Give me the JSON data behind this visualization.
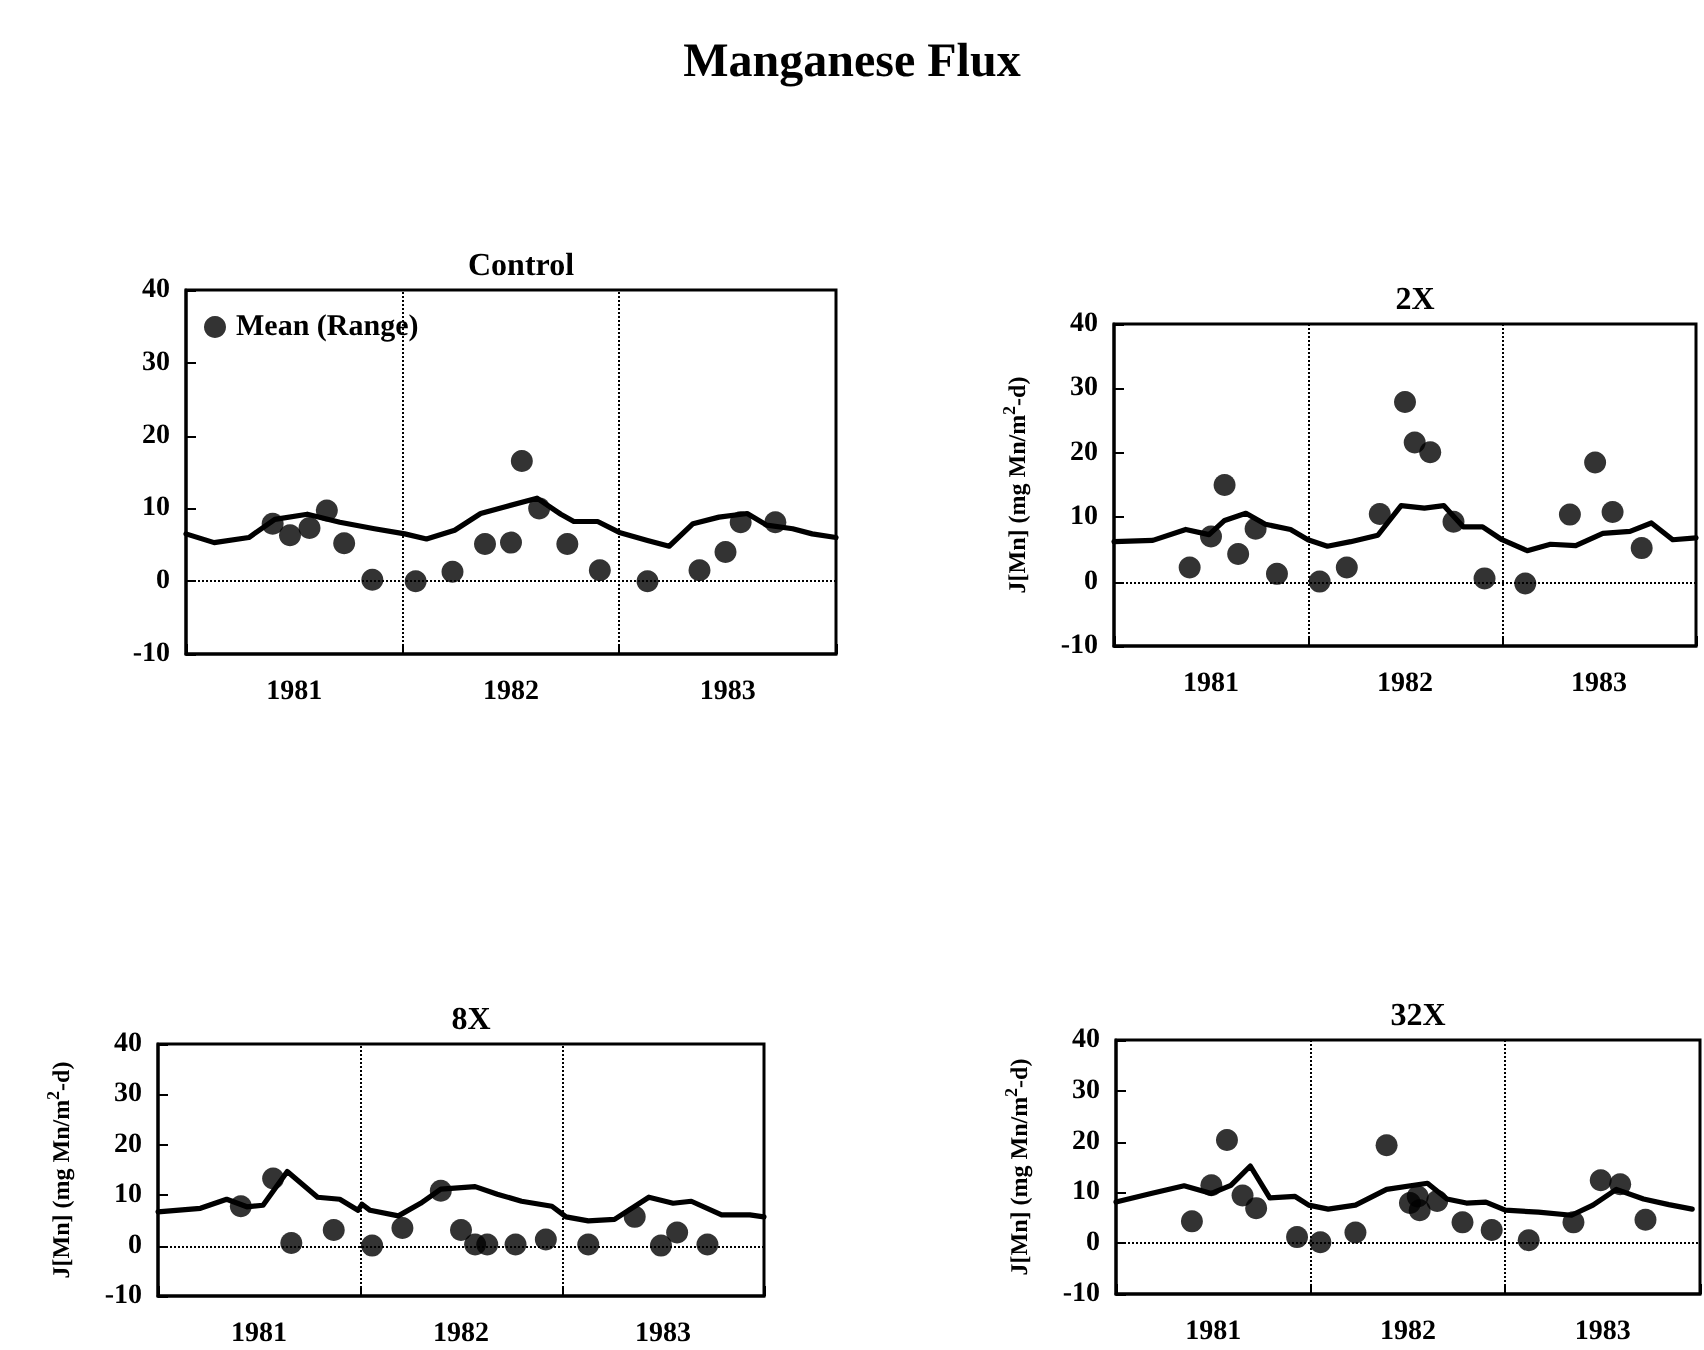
{
  "chart_data": [
    {
      "type": "scatter",
      "title": "Control",
      "annotations": [
        "Manganese Flux"
      ],
      "xlim": [
        1981,
        1984
      ],
      "xticks": [
        {
          "value": 1981,
          "label": null
        },
        {
          "value": 1981.5,
          "label": "1981"
        },
        {
          "value": 1982,
          "label": null
        },
        {
          "value": 1982.5,
          "label": "1982"
        },
        {
          "value": 1983,
          "label": null
        },
        {
          "value": 1983.5,
          "label": "1983"
        },
        {
          "value": 1984,
          "label": null
        }
      ],
      "ylim": [
        -10,
        40
      ],
      "yticks": [
        -10,
        0,
        10,
        20,
        30,
        40
      ],
      "legend": "top left",
      "ref_lines": [
        {
          "axis": "y",
          "value": 0,
          "line_style": "dotted",
          "color": "#000000"
        },
        {
          "axis": "x",
          "value": 1982,
          "line_style": "dotted",
          "color": "#000000"
        },
        {
          "axis": "x",
          "value": 1983,
          "line_style": "dotted",
          "color": "#000000"
        }
      ],
      "series": [
        {
          "name": "Mean (Range)",
          "marker": "circle",
          "color": "#000000",
          "x": [
            1981.4,
            1981.48,
            1981.57,
            1981.65,
            1981.73,
            1981.86,
            1982.06,
            1982.21,
            1982.23,
            1982.38,
            1982.5,
            1982.55,
            1982.63,
            1982.76,
            1982.91,
            1983.13,
            1983.37,
            1983.49,
            1983.56,
            1983.72
          ],
          "values": [
            7.9,
            6.3,
            7.3,
            9.7,
            5.2,
            0.2,
            0.0,
            null,
            1.3,
            5.1,
            5.3,
            16.5,
            10.0,
            5.1,
            1.5,
            0.0,
            1.5,
            4.0,
            8.1,
            8.1
          ]
        },
        {
          "type": "line",
          "color": "#000000",
          "line_style": "solid",
          "x": [
            1981.0,
            1981.13,
            1981.29,
            1981.41,
            1981.56,
            1981.71,
            1981.87,
            1982.01,
            1982.11,
            1982.24,
            1982.36,
            1982.47,
            1982.62,
            1982.73,
            1982.79,
            1982.9,
            1983.0,
            1983.13,
            1983.23,
            1983.34,
            1983.46,
            1983.59,
            1983.68,
            1983.8,
            1983.89,
            1984.0
          ],
          "values": [
            6.5,
            5.3,
            6.0,
            8.5,
            9.2,
            8.1,
            7.2,
            6.5,
            5.8,
            7.0,
            9.3,
            10.2,
            11.4,
            9.2,
            8.2,
            8.2,
            6.7,
            5.6,
            4.8,
            7.9,
            8.8,
            9.3,
            7.7,
            7.2,
            6.5,
            6.0
          ]
        }
      ]
    },
    {
      "type": "scatter",
      "title": "2X",
      "ylabel": "J[Mn] (mg Mn/m$^{2}$-d)",
      "xlim": [
        1981,
        1984
      ],
      "xticks": [
        {
          "value": 1981,
          "label": null
        },
        {
          "value": 1981.5,
          "label": "1981"
        },
        {
          "value": 1982,
          "label": null
        },
        {
          "value": 1982.5,
          "label": "1982"
        },
        {
          "value": 1983,
          "label": null
        },
        {
          "value": 1983.5,
          "label": "1983"
        },
        {
          "value": 1984,
          "label": null
        }
      ],
      "ylim": [
        -10,
        40
      ],
      "yticks": [
        -10,
        0,
        10,
        20,
        30,
        40
      ],
      "ref_lines": [
        {
          "axis": "y",
          "value": 0,
          "line_style": "dotted",
          "color": "#000000"
        },
        {
          "axis": "x",
          "value": 1982,
          "line_style": "dotted",
          "color": "#000000"
        },
        {
          "axis": "x",
          "value": 1983,
          "line_style": "dotted",
          "color": "#000000"
        }
      ],
      "series": [
        {
          "marker": "circle",
          "color": "#000000",
          "x": [
            1981.39,
            1981.5,
            1981.57,
            1981.64,
            1981.73,
            1981.84,
            1982.06,
            1982.2,
            1982.37,
            1982.5,
            1982.55,
            1982.63,
            1982.75,
            1982.91,
            1983.12,
            1983.35,
            1983.48,
            1983.57,
            1983.72
          ],
          "values": [
            2.2,
            7.0,
            15.0,
            4.3,
            8.2,
            1.2,
            0.0,
            2.2,
            10.5,
            27.9,
            21.6,
            20.1,
            9.3,
            0.5,
            -0.3,
            10.4,
            18.5,
            10.8,
            5.2
          ]
        },
        {
          "type": "line",
          "color": "#000000",
          "line_style": "solid",
          "x": [
            1981.0,
            1981.2,
            1981.37,
            1981.49,
            1981.57,
            1981.68,
            1981.78,
            1981.91,
            1982.0,
            1982.1,
            1982.22,
            1982.36,
            1982.48,
            1982.6,
            1982.7,
            1982.8,
            1982.9,
            1983.0,
            1983.13,
            1983.25,
            1983.38,
            1983.52,
            1983.66,
            1983.77,
            1983.88,
            1984.0
          ],
          "values": [
            6.2,
            6.4,
            8.1,
            7.3,
            9.5,
            10.6,
            8.9,
            8.1,
            6.5,
            5.5,
            6.2,
            7.2,
            11.8,
            11.4,
            11.8,
            8.5,
            8.5,
            6.5,
            4.8,
            5.8,
            5.6,
            7.5,
            7.8,
            9.1,
            6.5,
            6.8
          ]
        }
      ]
    },
    {
      "type": "scatter",
      "title": "8X",
      "ylabel": "J[Mn] (mg Mn/m$^{2}$-d)",
      "xlim": [
        1981,
        1984
      ],
      "xticks": [
        {
          "value": 1981,
          "label": null
        },
        {
          "value": 1981.5,
          "label": "1981"
        },
        {
          "value": 1982,
          "label": null
        },
        {
          "value": 1982.5,
          "label": "1982"
        },
        {
          "value": 1983,
          "label": null
        },
        {
          "value": 1983.5,
          "label": "1983"
        },
        {
          "value": 1984,
          "label": null
        }
      ],
      "ylim": [
        -10,
        40
      ],
      "yticks": [
        -10,
        0,
        10,
        20,
        30,
        40
      ],
      "ref_lines": [
        {
          "axis": "y",
          "value": 0,
          "line_style": "dotted",
          "color": "#000000"
        },
        {
          "axis": "x",
          "value": 1982,
          "line_style": "dotted",
          "color": "#000000"
        },
        {
          "axis": "x",
          "value": 1983,
          "line_style": "dotted",
          "color": "#000000"
        }
      ],
      "series": [
        {
          "marker": "circle",
          "color": "#000000",
          "x": [
            1981.41,
            1981.57,
            1981.66,
            1981.87,
            1982.06,
            1982.21,
            1982.4,
            1982.5,
            1982.57,
            1982.63,
            1982.77,
            1982.92,
            1983.13,
            1983.36,
            1983.49,
            1983.57,
            1983.72
          ],
          "values": [
            7.8,
            13.3,
            0.5,
            3.1,
            0.0,
            3.5,
            10.9,
            3.1,
            0.2,
            0.2,
            0.2,
            1.2,
            0.2,
            5.7,
            0.0,
            2.6,
            0.2
          ]
        },
        {
          "type": "line",
          "color": "#000000",
          "line_style": "solid",
          "x": [
            1981.0,
            1981.21,
            1981.34,
            1981.44,
            1981.52,
            1981.64,
            1981.79,
            1981.9,
            1981.99,
            1982.01,
            1982.05,
            1982.19,
            1982.3,
            1982.4,
            1982.57,
            1982.68,
            1982.8,
            1982.95,
            1983.02,
            1983.13,
            1983.26,
            1983.43,
            1983.55,
            1983.64,
            1983.79,
            1983.93,
            1984.0
          ],
          "values": [
            6.7,
            7.4,
            9.2,
            7.7,
            8.0,
            14.7,
            9.6,
            9.2,
            7.0,
            8.2,
            7.0,
            5.9,
            8.4,
            11.2,
            11.7,
            10.2,
            8.8,
            7.8,
            5.7,
            4.9,
            5.2,
            9.6,
            8.4,
            8.8,
            6.1,
            6.1,
            5.7
          ]
        }
      ]
    },
    {
      "type": "scatter",
      "title": "32X",
      "ylabel": "J[Mn] (mg Mn/m$^{2}$-d)",
      "xlim": [
        1981,
        1984
      ],
      "xticks": [
        {
          "value": 1981,
          "label": null
        },
        {
          "value": 1981.5,
          "label": "1981"
        },
        {
          "value": 1982,
          "label": null
        },
        {
          "value": 1982.5,
          "label": "1982"
        },
        {
          "value": 1983,
          "label": null
        },
        {
          "value": 1983.5,
          "label": "1983"
        },
        {
          "value": 1984,
          "label": null
        }
      ],
      "ylim": [
        -10,
        40
      ],
      "yticks": [
        -10,
        0,
        10,
        20,
        30,
        40
      ],
      "ref_lines": [
        {
          "axis": "y",
          "value": 0,
          "line_style": "dotted",
          "color": "#000000"
        },
        {
          "axis": "x",
          "value": 1982,
          "line_style": "dotted",
          "color": "#000000"
        },
        {
          "axis": "x",
          "value": 1983,
          "line_style": "dotted",
          "color": "#000000"
        }
      ],
      "series": [
        {
          "marker": "circle",
          "color": "#000000",
          "x": [
            1981.39,
            1981.49,
            1981.57,
            1981.65,
            1981.72,
            1981.93,
            1982.05,
            1982.23,
            1982.39,
            1982.51,
            1982.55,
            1982.56,
            1982.65,
            1982.78,
            1982.93,
            1983.12,
            1983.35,
            1983.49,
            1983.59,
            1983.72
          ],
          "values": [
            4.3,
            11.4,
            20.3,
            9.4,
            6.9,
            1.2,
            0.2,
            2.1,
            19.3,
            7.9,
            9.2,
            6.5,
            8.3,
            4.1,
            2.6,
            0.6,
            4.1,
            12.4,
            11.6,
            4.6
          ]
        },
        {
          "type": "line",
          "color": "#000000",
          "line_style": "solid",
          "x": [
            1981.0,
            1981.18,
            1981.35,
            1981.49,
            1981.59,
            1981.69,
            1981.79,
            1981.92,
            1981.99,
            1982.09,
            1982.23,
            1982.39,
            1982.6,
            1982.7,
            1982.8,
            1982.9,
            1983.0,
            1983.17,
            1983.34,
            1983.45,
            1983.57,
            1983.71,
            1983.84,
            1983.96
          ],
          "values": [
            8.1,
            9.8,
            11.3,
            9.8,
            11.4,
            15.2,
            8.9,
            9.2,
            7.5,
            6.7,
            7.5,
            10.6,
            11.8,
            8.7,
            7.9,
            8.1,
            6.5,
            6.1,
            5.5,
            7.5,
            10.6,
            8.7,
            7.6,
            6.7
          ]
        }
      ]
    }
  ]
}
